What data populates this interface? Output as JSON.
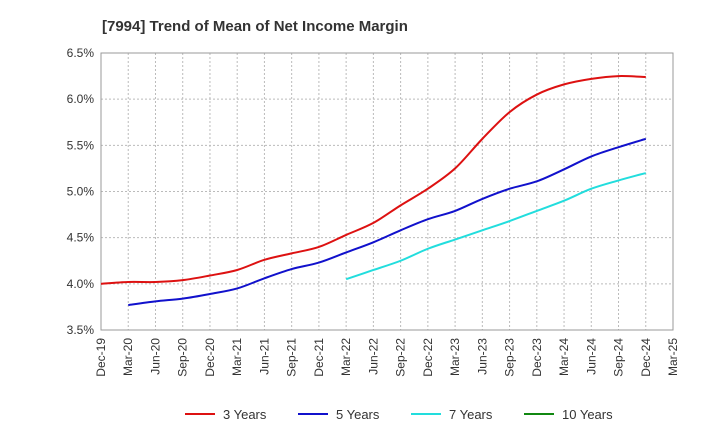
{
  "chart_data": {
    "type": "line",
    "title": "[7994]  Trend of Mean of Net Income Margin",
    "xlabel": "",
    "ylabel": "",
    "x": [
      "Dec-19",
      "Mar-20",
      "Jun-20",
      "Sep-20",
      "Dec-20",
      "Mar-21",
      "Jun-21",
      "Sep-21",
      "Dec-21",
      "Mar-22",
      "Jun-22",
      "Sep-22",
      "Dec-22",
      "Mar-23",
      "Jun-23",
      "Sep-23",
      "Dec-23",
      "Mar-24",
      "Jun-24",
      "Sep-24",
      "Dec-24",
      "Mar-25"
    ],
    "ylim": [
      3.5,
      6.5
    ],
    "yticks": [
      "3.5%",
      "4.0%",
      "4.5%",
      "5.0%",
      "5.5%",
      "6.0%",
      "6.5%"
    ],
    "ytick_values": [
      3.5,
      4.0,
      4.5,
      5.0,
      5.5,
      6.0,
      6.5
    ],
    "grid": true,
    "legend_position": "bottom",
    "series": [
      {
        "name": "3 Years",
        "color": "#dd1111",
        "values": [
          4.0,
          4.02,
          4.02,
          4.04,
          4.09,
          4.15,
          4.26,
          4.33,
          4.4,
          4.53,
          4.66,
          4.85,
          5.03,
          5.25,
          5.57,
          5.86,
          6.05,
          6.16,
          6.22,
          6.25,
          6.24,
          null
        ]
      },
      {
        "name": "5 Years",
        "color": "#1111cc",
        "values": [
          null,
          3.77,
          3.81,
          3.84,
          3.89,
          3.95,
          4.06,
          4.16,
          4.23,
          4.34,
          4.45,
          4.58,
          4.7,
          4.79,
          4.92,
          5.03,
          5.11,
          5.24,
          5.38,
          5.48,
          5.57,
          null
        ]
      },
      {
        "name": "7 Years",
        "color": "#22dddd",
        "values": [
          null,
          null,
          null,
          null,
          null,
          null,
          null,
          null,
          null,
          4.05,
          4.15,
          4.25,
          4.38,
          4.48,
          4.58,
          4.68,
          4.79,
          4.9,
          5.03,
          5.12,
          5.2,
          null
        ]
      },
      {
        "name": "10 Years",
        "color": "#118811",
        "values": [
          null,
          null,
          null,
          null,
          null,
          null,
          null,
          null,
          null,
          null,
          null,
          null,
          null,
          null,
          null,
          null,
          null,
          null,
          null,
          null,
          null,
          null
        ]
      }
    ]
  }
}
